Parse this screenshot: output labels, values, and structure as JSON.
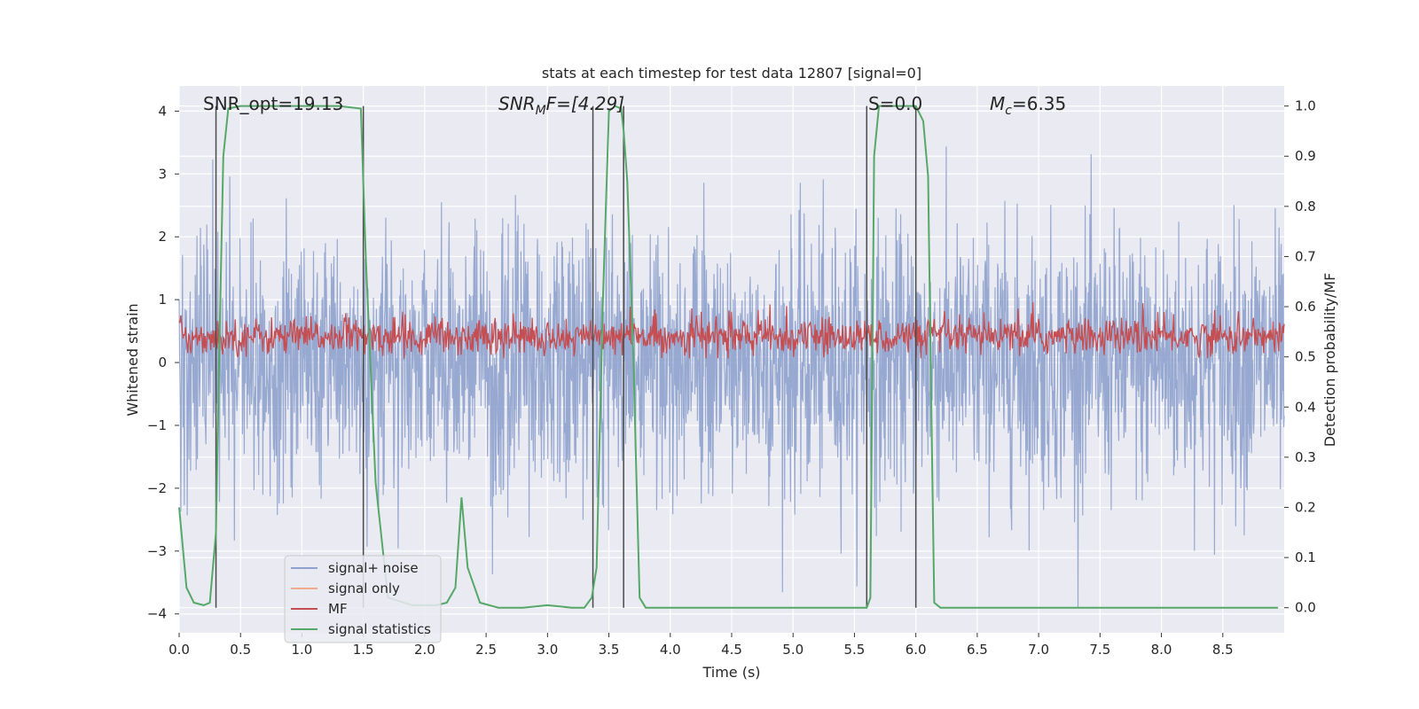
{
  "chart_data": {
    "type": "line",
    "title": "stats at each timestep for test data 12807 [signal=0]",
    "xlabel": "Time (s)",
    "ylabel_left": "Whitened strain",
    "ylabel_right": "Detection probability/MF",
    "xlim": [
      0.0,
      9.0
    ],
    "ylim_left": [
      -4.3,
      4.4
    ],
    "ylim_right": [
      -0.05,
      1.04
    ],
    "xticks": [
      "0.0",
      "0.5",
      "1.0",
      "1.5",
      "2.0",
      "2.5",
      "3.0",
      "3.5",
      "4.0",
      "4.5",
      "5.0",
      "5.5",
      "6.0",
      "6.5",
      "7.0",
      "7.5",
      "8.0",
      "8.5"
    ],
    "yticks_left": [
      "4",
      "3",
      "2",
      "1",
      "0",
      "−1",
      "−2",
      "−3",
      "−4"
    ],
    "yticks_right": [
      "1.0",
      "0.9",
      "0.8",
      "0.7",
      "0.6",
      "0.5",
      "0.4",
      "0.3",
      "0.2",
      "0.1",
      "0.0"
    ],
    "grid": true,
    "legend_position": "lower-left",
    "annotations": {
      "snr_opt": "SNR_opt=19.13",
      "snr_mf_base": "SNR",
      "snr_mf_sub": "M",
      "snr_mf_rest": "F=[4.29]",
      "s_value": "S=0.0",
      "mc_base": "M",
      "mc_sub": "c",
      "mc_rest": "=6.35"
    },
    "series": [
      {
        "name": "signal+ noise",
        "color": "#8ea2cd",
        "axis": "left",
        "note": "whitened strain noise, roughly -3.5..3.5"
      },
      {
        "name": "signal only",
        "color": "#f0a98a",
        "axis": "left",
        "values": []
      },
      {
        "name": "MF",
        "color": "#c44e52",
        "axis": "right",
        "note": "matched filter output, roughly 0.50..0.62"
      },
      {
        "name": "signal statistics",
        "color": "#55a868",
        "axis": "right",
        "x": [
          0.0,
          0.06,
          0.12,
          0.2,
          0.25,
          0.3,
          0.33,
          0.36,
          0.4,
          0.5,
          0.9,
          1.3,
          1.48,
          1.52,
          1.6,
          1.7,
          1.9,
          2.1,
          2.18,
          2.25,
          2.3,
          2.35,
          2.45,
          2.6,
          2.8,
          3.0,
          3.2,
          3.3,
          3.36,
          3.4,
          3.45,
          3.5,
          3.55,
          3.6,
          3.62,
          3.65,
          3.7,
          3.72,
          3.75,
          3.8,
          4.0,
          5.0,
          5.6,
          5.63,
          5.66,
          5.7,
          5.8,
          6.0,
          6.06,
          6.1,
          6.12,
          6.15,
          6.2,
          7.0,
          8.0,
          8.95
        ],
        "values": [
          0.2,
          0.04,
          0.01,
          0.005,
          0.01,
          0.15,
          0.55,
          0.9,
          0.995,
          1.0,
          1.0,
          1.0,
          0.995,
          0.7,
          0.25,
          0.02,
          0.005,
          0.005,
          0.01,
          0.04,
          0.22,
          0.08,
          0.01,
          0.0,
          0.0,
          0.005,
          0.0,
          0.0,
          0.02,
          0.08,
          0.6,
          0.99,
          1.0,
          0.995,
          0.95,
          0.85,
          0.5,
          0.3,
          0.02,
          0.0,
          0.0,
          0.0,
          0.0,
          0.02,
          0.9,
          1.0,
          1.0,
          1.0,
          0.97,
          0.86,
          0.5,
          0.01,
          0.0,
          0.0,
          0.0,
          0.0
        ]
      }
    ],
    "vertical_lines_x": [
      0.3,
      1.5,
      3.37,
      3.62,
      5.6,
      6.0
    ]
  }
}
